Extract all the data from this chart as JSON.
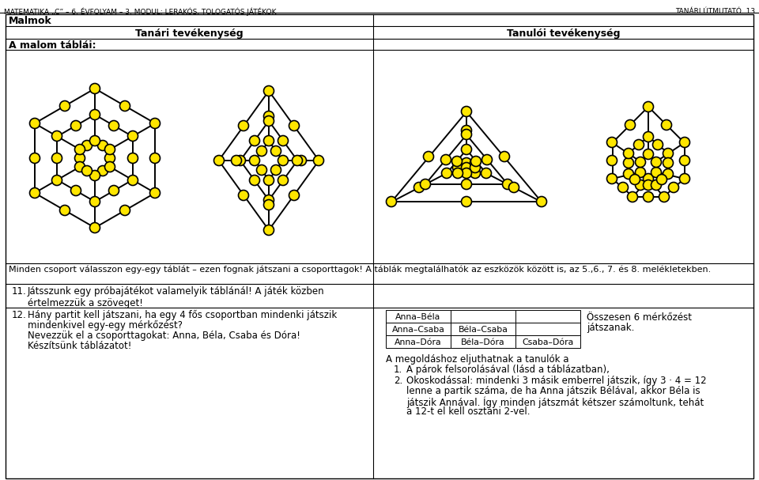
{
  "header_left": "MATEMATIKA „C” – 6. ÉVFOLYAM – 3. MODUL: LERAKÓS, TOLOGATÓS JÁTÉKOK",
  "header_right": "TANÁRI ÚTMUTATÓ  13",
  "section_title": "Malmok",
  "col1_header": "Tanári tevékenység",
  "col2_header": "Tanulói tevékenység",
  "row1_label": "A malom táblái:",
  "text_below_boards": "Minden csoport válasszon egy-egy táblát – ezen fognak játszani a csoporttagok! A táblák megtalálhatók az eszközök között is, az 5.,6., 7. és 8. melékletekben.",
  "text_below_line2": "melékletekben.",
  "item11_num": "11.",
  "item11_text": "Játsszunk egy próbajátékot valamelyik táblánál! A játék közben\nértelmezzük a szöveget!",
  "item12_num": "12.",
  "item12_text_line1": "Hány partit kell játszani, ha egy 4 fős csoportban mindenki játszik",
  "item12_text_line2": "mindenkivel egy-egy mérkőzést?",
  "item12_text_line3": "Nevezzük el a csoporttagokat: Anna, Béla, Csaba és Dóra!",
  "item12_text_line4": "Készítsünk táblázatot!",
  "table_data": [
    [
      "Anna–Béla",
      "",
      ""
    ],
    [
      "Anna–Csaba",
      "Béla–Csaba",
      ""
    ],
    [
      "Anna–Dóra",
      "Béla–Dóra",
      "Csaba–Dóra"
    ]
  ],
  "right_of_table_line1": "Összesen 6 mérkőzést",
  "right_of_table_line2": "játszanak.",
  "solution_text": "A megoldáshoz eljuthatnak a tanulók a",
  "solution_item1_num": "1.",
  "solution_item1": "A párok felsorolásával (lásd a táblázatban),",
  "solution_item2_num": "2.",
  "solution_item2_line1": "Okoskodással: mindenki 3 másik emberrel játszik, így 3 · 4 = 12",
  "solution_item2_line2": "lenne a partik száma, de ha Anna játszik Bélával, akkor Béla is",
  "solution_item2_line3": "játszik Annával. Így minden játszmát kétszer számoltunk, tehát",
  "solution_item2_line4": "a 12-t el kell osztani 2-vel.",
  "node_color": "#FFE600",
  "node_edge_color": "#000000",
  "line_color": "#000000",
  "bg_color": "#ffffff"
}
